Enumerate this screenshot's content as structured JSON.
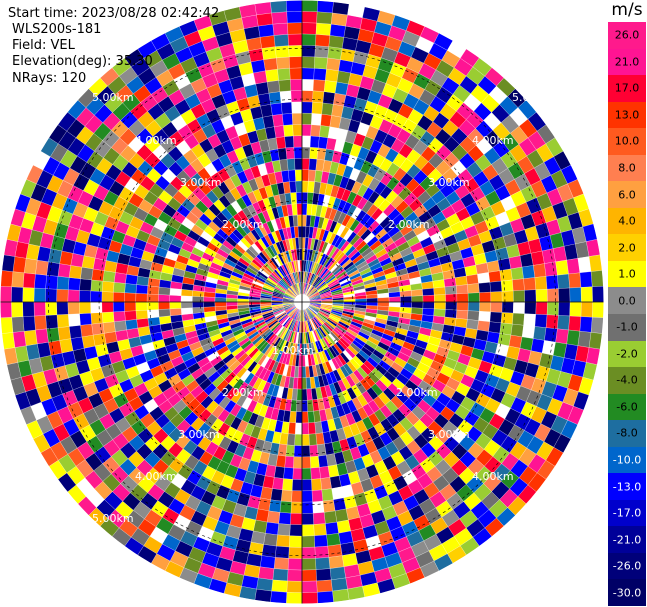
{
  "info": {
    "start_time": "Start time: 2023/08/28 02:42:42",
    "instrument": "WLS200s-181",
    "field": "Field: VEL",
    "elevation": "Elevation(deg): 35.30",
    "nrays": "NRays: 120"
  },
  "colorbar": {
    "unit": "m/s",
    "labels": [
      "26.0",
      "21.0",
      "17.0",
      "13.0",
      "10.0",
      "8.0",
      "6.0",
      "4.0",
      "2.0",
      "1.0",
      "0.0",
      "-1.0",
      "-2.0",
      "-4.0",
      "-6.0",
      "-8.0",
      "-10.0",
      "-13.0",
      "-17.0",
      "-21.0",
      "-26.0",
      "-30.0"
    ],
    "colors": [
      "#ff1a8c",
      "#ff1493",
      "#ff0033",
      "#ff3300",
      "#ff5a1f",
      "#ff7f50",
      "#ffa040",
      "#ffb400",
      "#ffd000",
      "#ffff00",
      "#8c8c8c",
      "#707070",
      "#9acd32",
      "#6b8e23",
      "#228b22",
      "#1e6ea0",
      "#0066cc",
      "#0000ff",
      "#0000cc",
      "#000099",
      "#00007a",
      "#000066"
    ]
  },
  "chart_data": {
    "type": "heatmap",
    "projection": "polar-ppi",
    "field": "VEL",
    "unit": "m/s",
    "nrays": 120,
    "elevation_deg": 35.3,
    "ring_labels": [
      "1.00km",
      "2.00km",
      "3.00km",
      "4.00km",
      "5.00km"
    ],
    "colorbar_ticks": [
      26.0,
      21.0,
      17.0,
      13.0,
      10.0,
      8.0,
      6.0,
      4.0,
      2.0,
      1.0,
      0.0,
      -1.0,
      -2.0,
      -4.0,
      -6.0,
      -8.0,
      -10.0,
      -13.0,
      -17.0,
      -21.0,
      -26.0,
      -30.0
    ],
    "value_range": [
      -30.0,
      30.0
    ],
    "rings_km": [
      1,
      2,
      3,
      4,
      5
    ]
  }
}
